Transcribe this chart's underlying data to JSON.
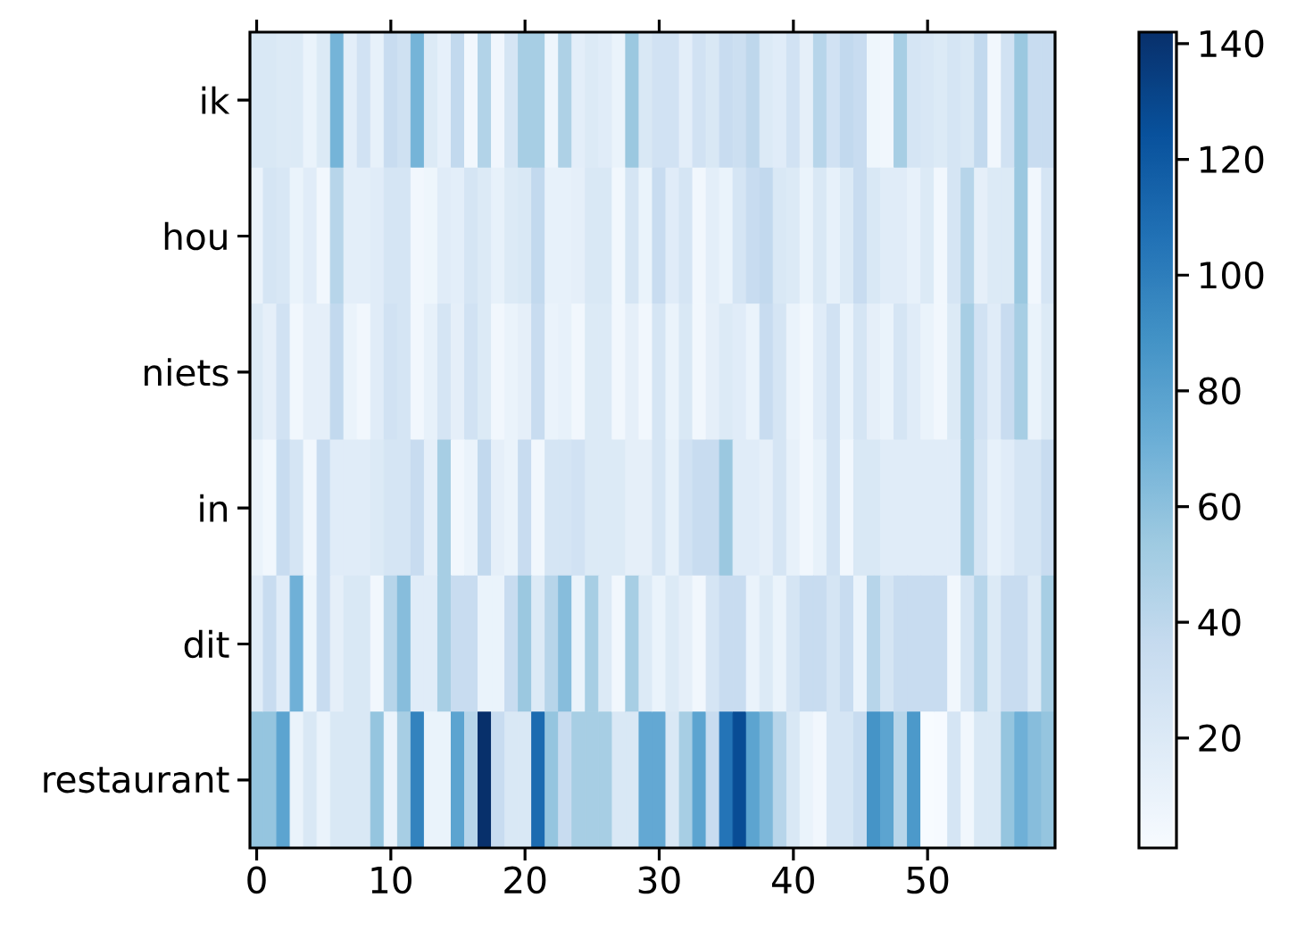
{
  "chart_data": {
    "type": "heatmap",
    "categories": [
      "0",
      null,
      null,
      null,
      null,
      null,
      null,
      null,
      null,
      null,
      "10",
      null,
      null,
      null,
      null,
      null,
      null,
      null,
      null,
      null,
      "20",
      null,
      null,
      null,
      null,
      null,
      null,
      null,
      null,
      null,
      "30",
      null,
      null,
      null,
      null,
      null,
      null,
      null,
      null,
      null,
      "40",
      null,
      null,
      null,
      null,
      null,
      null,
      null,
      null,
      null,
      "50",
      null,
      null,
      null,
      null,
      null,
      null,
      null,
      null,
      null
    ],
    "y_categories": [
      "ik",
      "hou",
      "niets",
      "in",
      "dit",
      "restaurant"
    ],
    "cells": [
      [
        22,
        22,
        20,
        20,
        10,
        20,
        68,
        15,
        28,
        12,
        35,
        30,
        68,
        20,
        13,
        38,
        5,
        45,
        6,
        25,
        50,
        50,
        8,
        47,
        15,
        20,
        17,
        10,
        55,
        22,
        28,
        28,
        15,
        28,
        22,
        35,
        32,
        40,
        20,
        17,
        28,
        14,
        43,
        28,
        38,
        35,
        7,
        5,
        50,
        25,
        23,
        20,
        25,
        22,
        38,
        5,
        28,
        55,
        35,
        35
      ],
      [
        10,
        25,
        23,
        10,
        17,
        5,
        43,
        15,
        15,
        17,
        25,
        25,
        5,
        7,
        17,
        15,
        25,
        20,
        12,
        20,
        22,
        38,
        12,
        12,
        14,
        22,
        22,
        5,
        25,
        10,
        35,
        17,
        25,
        5,
        15,
        10,
        25,
        35,
        38,
        22,
        20,
        10,
        22,
        12,
        20,
        35,
        22,
        17,
        17,
        12,
        20,
        5,
        25,
        43,
        14,
        20,
        20,
        55,
        5,
        25
      ],
      [
        20,
        14,
        28,
        5,
        14,
        14,
        38,
        10,
        5,
        17,
        28,
        25,
        5,
        12,
        25,
        14,
        28,
        20,
        5,
        10,
        14,
        35,
        10,
        12,
        5,
        20,
        20,
        5,
        14,
        5,
        25,
        10,
        22,
        5,
        14,
        20,
        17,
        10,
        35,
        25,
        10,
        5,
        17,
        28,
        10,
        25,
        14,
        10,
        25,
        17,
        10,
        5,
        20,
        50,
        28,
        17,
        35,
        50,
        10,
        20
      ],
      [
        10,
        5,
        35,
        25,
        5,
        35,
        17,
        17,
        17,
        20,
        25,
        25,
        35,
        14,
        50,
        5,
        10,
        38,
        14,
        10,
        35,
        5,
        25,
        25,
        28,
        20,
        20,
        20,
        14,
        14,
        25,
        12,
        28,
        35,
        35,
        55,
        17,
        17,
        14,
        25,
        12,
        5,
        12,
        28,
        5,
        22,
        22,
        17,
        17,
        17,
        17,
        17,
        17,
        50,
        25,
        12,
        17,
        25,
        25,
        35
      ],
      [
        17,
        35,
        17,
        70,
        8,
        35,
        14,
        22,
        22,
        5,
        43,
        62,
        17,
        17,
        50,
        35,
        35,
        10,
        10,
        35,
        55,
        20,
        43,
        62,
        10,
        50,
        20,
        5,
        50,
        20,
        10,
        20,
        14,
        5,
        25,
        35,
        35,
        10,
        20,
        10,
        25,
        35,
        35,
        25,
        35,
        10,
        43,
        25,
        35,
        35,
        35,
        35,
        5,
        25,
        43,
        20,
        35,
        35,
        20,
        50
      ],
      [
        57,
        57,
        78,
        10,
        22,
        10,
        22,
        22,
        22,
        57,
        10,
        50,
        97,
        10,
        10,
        78,
        43,
        142,
        35,
        22,
        22,
        110,
        57,
        35,
        50,
        50,
        50,
        22,
        22,
        75,
        75,
        22,
        50,
        78,
        35,
        105,
        127,
        78,
        65,
        43,
        22,
        10,
        5,
        25,
        25,
        35,
        88,
        78,
        43,
        85,
        1,
        2,
        25,
        5,
        22,
        22,
        57,
        70,
        62,
        57
      ]
    ],
    "clim": [
      1,
      142
    ],
    "cticks": [
      20,
      40,
      60,
      80,
      100,
      120,
      140
    ]
  }
}
